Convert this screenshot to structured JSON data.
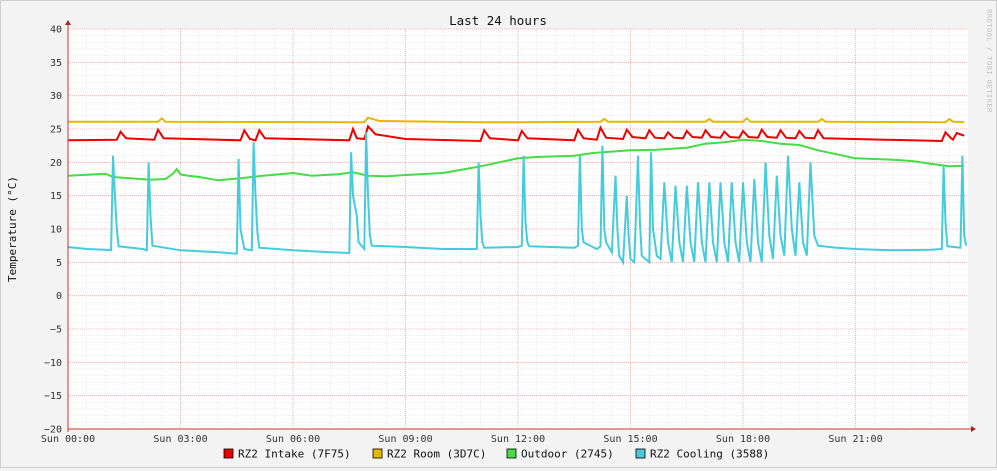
{
  "chart_data": {
    "type": "line",
    "title": "Last 24 hours",
    "ylabel": "Temperature (°C)",
    "watermark": "RRDTOOL / TOBI OETIKER",
    "ylim": [
      -20,
      40
    ],
    "yticks": [
      -20,
      -15,
      -10,
      -5,
      0,
      5,
      10,
      15,
      20,
      25,
      30,
      35,
      40
    ],
    "xlim": [
      0,
      24
    ],
    "xticks": [
      {
        "hour": 0,
        "label": "Sun 00:00"
      },
      {
        "hour": 3,
        "label": "Sun 03:00"
      },
      {
        "hour": 6,
        "label": "Sun 06:00"
      },
      {
        "hour": 9,
        "label": "Sun 09:00"
      },
      {
        "hour": 12,
        "label": "Sun 12:00"
      },
      {
        "hour": 15,
        "label": "Sun 15:00"
      },
      {
        "hour": 18,
        "label": "Sun 18:00"
      },
      {
        "hour": 21,
        "label": "Sun 21:00"
      }
    ],
    "grid": true,
    "legend_position": "bottom",
    "series": [
      {
        "name": "RZ2 Intake (7F75)",
        "color": "#ee0000",
        "points": [
          [
            0,
            23.3
          ],
          [
            1.3,
            23.4
          ],
          [
            1.4,
            24.6
          ],
          [
            1.55,
            23.6
          ],
          [
            2.3,
            23.4
          ],
          [
            2.4,
            24.9
          ],
          [
            2.55,
            23.6
          ],
          [
            4.6,
            23.3
          ],
          [
            4.7,
            24.8
          ],
          [
            4.85,
            23.5
          ],
          [
            5.0,
            23.3
          ],
          [
            5.1,
            24.8
          ],
          [
            5.25,
            23.6
          ],
          [
            7.5,
            23.3
          ],
          [
            7.6,
            25.0
          ],
          [
            7.7,
            23.6
          ],
          [
            7.9,
            23.5
          ],
          [
            8.0,
            25.4
          ],
          [
            8.2,
            24.2
          ],
          [
            9.0,
            23.5
          ],
          [
            11.0,
            23.2
          ],
          [
            11.1,
            24.8
          ],
          [
            11.25,
            23.6
          ],
          [
            12.0,
            23.3
          ],
          [
            12.1,
            24.7
          ],
          [
            12.25,
            23.6
          ],
          [
            13.5,
            23.3
          ],
          [
            13.6,
            24.9
          ],
          [
            13.75,
            23.6
          ],
          [
            14.1,
            23.4
          ],
          [
            14.2,
            25.2
          ],
          [
            14.35,
            23.7
          ],
          [
            14.8,
            23.5
          ],
          [
            14.9,
            24.9
          ],
          [
            15.05,
            23.8
          ],
          [
            15.4,
            23.6
          ],
          [
            15.5,
            24.8
          ],
          [
            15.65,
            23.7
          ],
          [
            15.9,
            23.6
          ],
          [
            16.0,
            24.5
          ],
          [
            16.15,
            23.7
          ],
          [
            16.4,
            23.6
          ],
          [
            16.5,
            24.7
          ],
          [
            16.65,
            23.8
          ],
          [
            16.9,
            23.7
          ],
          [
            17.0,
            24.8
          ],
          [
            17.15,
            23.8
          ],
          [
            17.4,
            23.7
          ],
          [
            17.5,
            24.6
          ],
          [
            17.65,
            23.8
          ],
          [
            17.9,
            23.7
          ],
          [
            18.0,
            24.7
          ],
          [
            18.15,
            23.8
          ],
          [
            18.4,
            23.7
          ],
          [
            18.5,
            24.9
          ],
          [
            18.65,
            23.8
          ],
          [
            18.9,
            23.7
          ],
          [
            19.0,
            24.8
          ],
          [
            19.15,
            23.7
          ],
          [
            19.4,
            23.6
          ],
          [
            19.5,
            24.7
          ],
          [
            19.65,
            23.7
          ],
          [
            19.9,
            23.6
          ],
          [
            20.0,
            24.8
          ],
          [
            20.15,
            23.6
          ],
          [
            23.3,
            23.2
          ],
          [
            23.4,
            24.5
          ],
          [
            23.55,
            23.6
          ],
          [
            23.6,
            23.4
          ],
          [
            23.7,
            24.4
          ],
          [
            23.9,
            24.0
          ]
        ]
      },
      {
        "name": "RZ2 Room (3D7C)",
        "color": "#e6b800",
        "points": [
          [
            0,
            26.1
          ],
          [
            2.4,
            26.1
          ],
          [
            2.5,
            26.6
          ],
          [
            2.6,
            26.1
          ],
          [
            7.9,
            26.0
          ],
          [
            8.0,
            26.7
          ],
          [
            8.3,
            26.2
          ],
          [
            11.0,
            26.0
          ],
          [
            12.0,
            26.0
          ],
          [
            14.2,
            26.1
          ],
          [
            14.3,
            26.5
          ],
          [
            14.4,
            26.1
          ],
          [
            17.0,
            26.1
          ],
          [
            17.1,
            26.5
          ],
          [
            17.2,
            26.1
          ],
          [
            18.0,
            26.1
          ],
          [
            18.1,
            26.6
          ],
          [
            18.2,
            26.1
          ],
          [
            20.0,
            26.1
          ],
          [
            20.1,
            26.5
          ],
          [
            20.2,
            26.1
          ],
          [
            23.4,
            26.0
          ],
          [
            23.5,
            26.5
          ],
          [
            23.6,
            26.1
          ],
          [
            23.9,
            26.0
          ]
        ]
      },
      {
        "name": "Outdoor (2745)",
        "color": "#44dd44",
        "points": [
          [
            0,
            18.0
          ],
          [
            1.0,
            18.3
          ],
          [
            1.2,
            17.8
          ],
          [
            2.2,
            17.4
          ],
          [
            2.6,
            17.5
          ],
          [
            2.8,
            18.3
          ],
          [
            2.9,
            19.0
          ],
          [
            3.0,
            18.2
          ],
          [
            3.2,
            18.0
          ],
          [
            3.5,
            17.8
          ],
          [
            4.0,
            17.3
          ],
          [
            4.6,
            17.6
          ],
          [
            5.2,
            18.0
          ],
          [
            6.0,
            18.4
          ],
          [
            6.5,
            18.0
          ],
          [
            7.2,
            18.2
          ],
          [
            7.6,
            18.5
          ],
          [
            8.0,
            18.0
          ],
          [
            8.5,
            17.9
          ],
          [
            9.0,
            18.1
          ],
          [
            10.0,
            18.4
          ],
          [
            10.6,
            19.0
          ],
          [
            11.0,
            19.4
          ],
          [
            11.5,
            20.0
          ],
          [
            12.0,
            20.6
          ],
          [
            12.5,
            20.8
          ],
          [
            13.5,
            21.0
          ],
          [
            14.0,
            21.4
          ],
          [
            15.0,
            21.8
          ],
          [
            15.7,
            21.9
          ],
          [
            16.0,
            22.0
          ],
          [
            16.5,
            22.2
          ],
          [
            17.0,
            22.8
          ],
          [
            17.5,
            23.0
          ],
          [
            18.0,
            23.4
          ],
          [
            18.5,
            23.2
          ],
          [
            19.0,
            22.8
          ],
          [
            19.5,
            22.6
          ],
          [
            20.0,
            21.8
          ],
          [
            20.5,
            21.2
          ],
          [
            21.0,
            20.6
          ],
          [
            22.0,
            20.4
          ],
          [
            22.5,
            20.2
          ],
          [
            23.0,
            19.8
          ],
          [
            23.5,
            19.4
          ],
          [
            23.9,
            19.5
          ]
        ]
      },
      {
        "name": "RZ2 Cooling (3588)",
        "color": "#44ccdd",
        "points": [
          [
            0,
            7.3
          ],
          [
            0.5,
            7.0
          ],
          [
            1.0,
            6.9
          ],
          [
            1.15,
            6.8
          ],
          [
            1.2,
            21.0
          ],
          [
            1.25,
            15.0
          ],
          [
            1.3,
            10.0
          ],
          [
            1.35,
            7.4
          ],
          [
            2.0,
            7.0
          ],
          [
            2.1,
            6.8
          ],
          [
            2.15,
            20.0
          ],
          [
            2.2,
            12.0
          ],
          [
            2.25,
            7.5
          ],
          [
            3.0,
            6.8
          ],
          [
            4.0,
            6.5
          ],
          [
            4.5,
            6.3
          ],
          [
            4.55,
            20.5
          ],
          [
            4.6,
            10.0
          ],
          [
            4.7,
            7.0
          ],
          [
            4.9,
            6.8
          ],
          [
            4.95,
            23.0
          ],
          [
            5.0,
            15.0
          ],
          [
            5.05,
            9.5
          ],
          [
            5.1,
            7.2
          ],
          [
            6.0,
            6.8
          ],
          [
            7.0,
            6.5
          ],
          [
            7.5,
            6.4
          ],
          [
            7.55,
            21.5
          ],
          [
            7.6,
            15.0
          ],
          [
            7.7,
            12.0
          ],
          [
            7.75,
            8.0
          ],
          [
            7.9,
            7.0
          ],
          [
            7.95,
            24.5
          ],
          [
            8.0,
            15.0
          ],
          [
            8.05,
            9.0
          ],
          [
            8.1,
            7.5
          ],
          [
            9.0,
            7.3
          ],
          [
            10.0,
            7.0
          ],
          [
            10.9,
            7.0
          ],
          [
            10.95,
            20.0
          ],
          [
            11.0,
            12.0
          ],
          [
            11.05,
            8.0
          ],
          [
            11.1,
            7.2
          ],
          [
            12.0,
            7.3
          ],
          [
            12.1,
            7.5
          ],
          [
            12.15,
            21.0
          ],
          [
            12.2,
            11.0
          ],
          [
            12.25,
            8.0
          ],
          [
            12.3,
            7.4
          ],
          [
            13.5,
            7.2
          ],
          [
            13.6,
            7.5
          ],
          [
            13.65,
            21.0
          ],
          [
            13.7,
            10.0
          ],
          [
            13.75,
            8.0
          ],
          [
            14.1,
            7.0
          ],
          [
            14.2,
            7.4
          ],
          [
            14.25,
            22.5
          ],
          [
            14.3,
            10.0
          ],
          [
            14.35,
            8.0
          ],
          [
            14.5,
            6.5
          ],
          [
            14.6,
            18.0
          ],
          [
            14.65,
            10.0
          ],
          [
            14.7,
            6.0
          ],
          [
            14.8,
            5.0
          ],
          [
            14.9,
            15.0
          ],
          [
            14.95,
            9.0
          ],
          [
            15.0,
            5.5
          ],
          [
            15.1,
            5.0
          ],
          [
            15.2,
            21.0
          ],
          [
            15.25,
            11.0
          ],
          [
            15.3,
            6.0
          ],
          [
            15.5,
            5.0
          ],
          [
            15.55,
            21.5
          ],
          [
            15.6,
            10.0
          ],
          [
            15.7,
            6.0
          ],
          [
            15.8,
            5.5
          ],
          [
            15.9,
            17.0
          ],
          [
            16.0,
            8.0
          ],
          [
            16.1,
            5.0
          ],
          [
            16.2,
            16.5
          ],
          [
            16.3,
            8.0
          ],
          [
            16.4,
            5.0
          ],
          [
            16.5,
            16.5
          ],
          [
            16.6,
            8.0
          ],
          [
            16.7,
            5.0
          ],
          [
            16.8,
            17.0
          ],
          [
            16.9,
            8.0
          ],
          [
            17.0,
            5.0
          ],
          [
            17.1,
            17.0
          ],
          [
            17.2,
            8.0
          ],
          [
            17.3,
            5.0
          ],
          [
            17.4,
            17.0
          ],
          [
            17.5,
            8.0
          ],
          [
            17.6,
            5.0
          ],
          [
            17.7,
            17.0
          ],
          [
            17.8,
            8.0
          ],
          [
            17.9,
            5.0
          ],
          [
            18.0,
            17.0
          ],
          [
            18.1,
            8.0
          ],
          [
            18.2,
            5.0
          ],
          [
            18.3,
            17.5
          ],
          [
            18.4,
            8.0
          ],
          [
            18.5,
            5.0
          ],
          [
            18.6,
            20.0
          ],
          [
            18.7,
            9.0
          ],
          [
            18.8,
            5.5
          ],
          [
            18.9,
            18.0
          ],
          [
            19.0,
            9.0
          ],
          [
            19.1,
            6.0
          ],
          [
            19.2,
            21.0
          ],
          [
            19.3,
            10.0
          ],
          [
            19.4,
            6.0
          ],
          [
            19.5,
            17.0
          ],
          [
            19.6,
            8.0
          ],
          [
            19.7,
            6.0
          ],
          [
            19.8,
            20.0
          ],
          [
            19.9,
            9.0
          ],
          [
            20.0,
            7.5
          ],
          [
            20.5,
            7.2
          ],
          [
            21.0,
            7.0
          ],
          [
            22.0,
            6.8
          ],
          [
            23.0,
            6.9
          ],
          [
            23.3,
            7.0
          ],
          [
            23.35,
            19.5
          ],
          [
            23.4,
            11.0
          ],
          [
            23.45,
            7.4
          ],
          [
            23.8,
            7.2
          ],
          [
            23.85,
            21.0
          ],
          [
            23.9,
            9.0
          ],
          [
            23.95,
            7.5
          ]
        ]
      }
    ]
  }
}
